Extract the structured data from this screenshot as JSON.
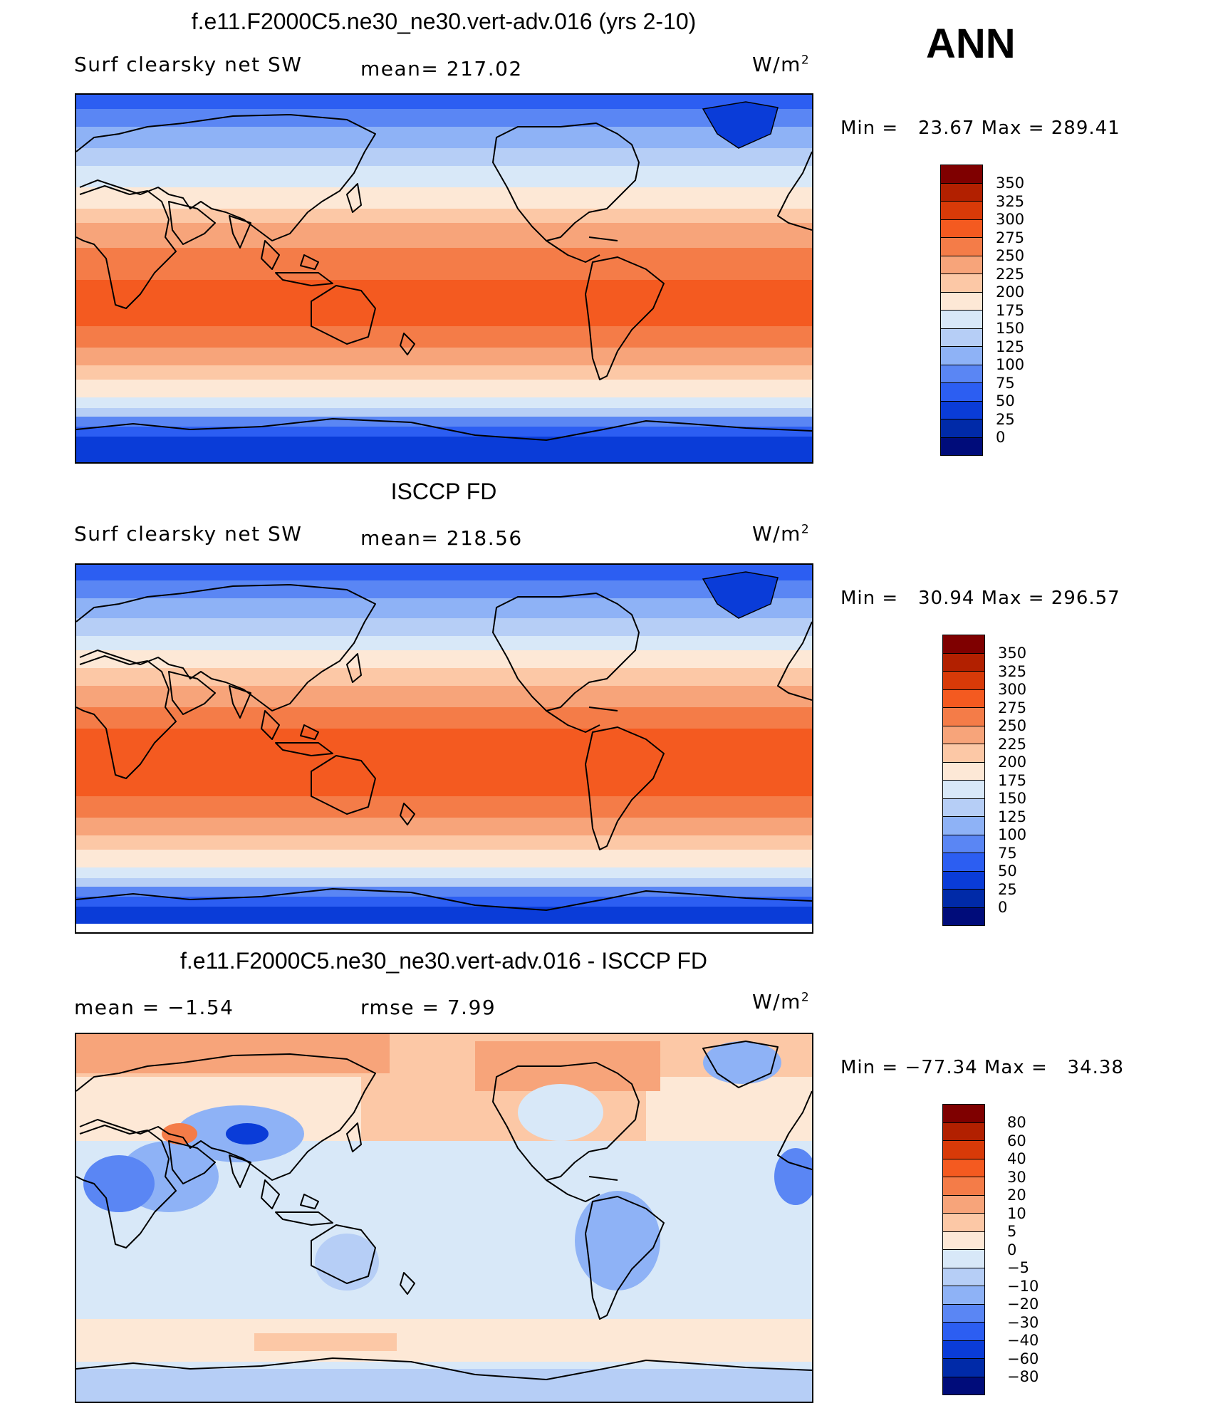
{
  "season": "ANN",
  "panels": [
    {
      "title": "f.e11.F2000C5.ne30_ne30.vert-adv.016 (yrs 2-10)",
      "left_label": "Surf clearsky net SW",
      "center_label": "mean= 217.02",
      "units_base": "W/m",
      "units_exp": "2",
      "min_max": "Min =   23.67 Max = 289.41",
      "colorbar_labels": [
        "350",
        "325",
        "300",
        "275",
        "250",
        "225",
        "200",
        "175",
        "150",
        "125",
        "100",
        "75",
        "50",
        "25",
        "0"
      ],
      "colors": [
        "#7f0000",
        "#b22000",
        "#d83a08",
        "#f45a20",
        "#f47c48",
        "#f7a47a",
        "#fcc8a6",
        "#fde8d6",
        "#d8e8f8",
        "#b6cef6",
        "#8eb2f6",
        "#5a86f4",
        "#2c5ef2",
        "#0a3cd8",
        "#002aa8",
        "#000c7a"
      ]
    },
    {
      "title": "ISCCP FD",
      "left_label": "Surf clearsky net SW",
      "center_label": "mean= 218.56",
      "units_base": "W/m",
      "units_exp": "2",
      "min_max": "Min =   30.94 Max = 296.57",
      "colorbar_labels": [
        "350",
        "325",
        "300",
        "275",
        "250",
        "225",
        "200",
        "175",
        "150",
        "125",
        "100",
        "75",
        "50",
        "25",
        "0"
      ],
      "colors": [
        "#7f0000",
        "#b22000",
        "#d83a08",
        "#f45a20",
        "#f47c48",
        "#f7a47a",
        "#fcc8a6",
        "#fde8d6",
        "#d8e8f8",
        "#b6cef6",
        "#8eb2f6",
        "#5a86f4",
        "#2c5ef2",
        "#0a3cd8",
        "#002aa8",
        "#000c7a"
      ]
    },
    {
      "title": "f.e11.F2000C5.ne30_ne30.vert-adv.016 - ISCCP FD",
      "left_label": "mean =   −1.54",
      "center_label": "rmse =    7.99",
      "units_base": "W/m",
      "units_exp": "2",
      "min_max": "Min = −77.34 Max =   34.38",
      "colorbar_labels": [
        "80",
        "60",
        "40",
        "30",
        "20",
        "10",
        "5",
        "0",
        "−5",
        "−10",
        "−20",
        "−30",
        "−40",
        "−60",
        "−80"
      ],
      "colors": [
        "#7f0000",
        "#b22000",
        "#d83a08",
        "#f45a20",
        "#f47c48",
        "#f7a47a",
        "#fcc8a6",
        "#fde8d6",
        "#d8e8f8",
        "#b6cef6",
        "#8eb2f6",
        "#5a86f4",
        "#2c5ef2",
        "#0a3cd8",
        "#002aa8",
        "#000c7a"
      ]
    }
  ]
}
